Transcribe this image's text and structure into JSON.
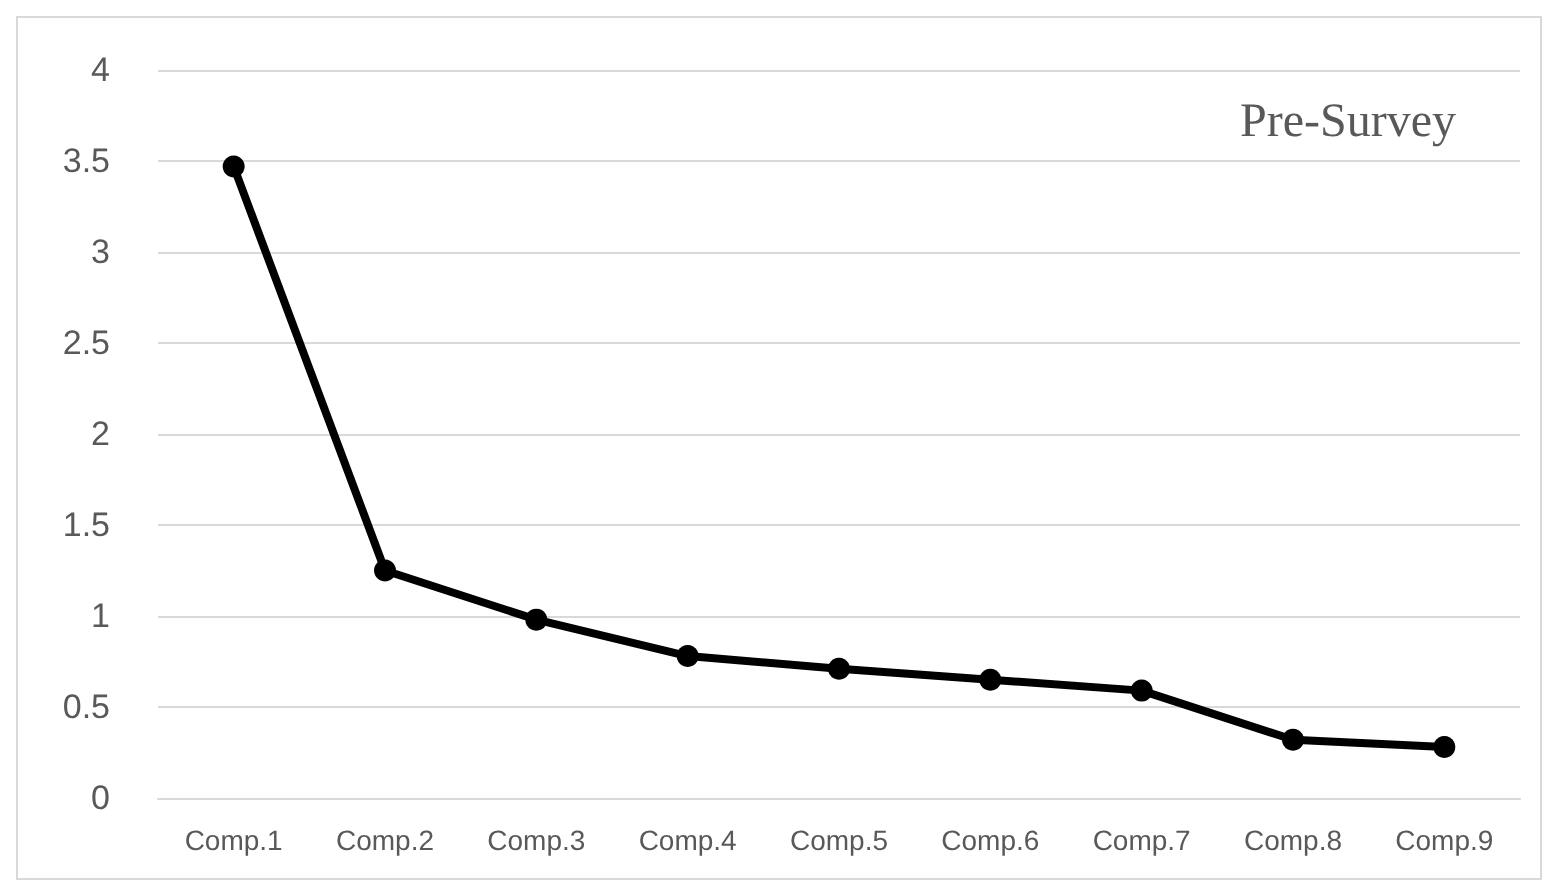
{
  "chart_data": {
    "type": "line",
    "categories": [
      "Comp.1",
      "Comp.2",
      "Comp.3",
      "Comp.4",
      "Comp.5",
      "Comp.6",
      "Comp.7",
      "Comp.8",
      "Comp.9"
    ],
    "series": [
      {
        "color": "#000000",
        "values": [
          3.47,
          1.25,
          0.98,
          0.78,
          0.71,
          0.65,
          0.59,
          0.32,
          0.28
        ]
      }
    ],
    "ylim": [
      0,
      4
    ],
    "yticks": [
      0,
      0.5,
      1,
      1.5,
      2,
      2.5,
      3,
      3.5,
      4
    ],
    "grid": "y",
    "marker": "circle",
    "line_style": "solid",
    "annotations": [
      "Pre-Survey"
    ]
  }
}
